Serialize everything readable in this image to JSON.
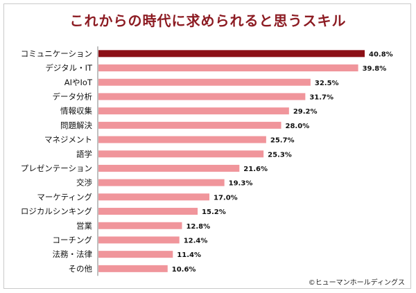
{
  "colors": {
    "title": "#8c1b22",
    "highlight": "#8b0f16",
    "bar": "#f0959b",
    "axis": "#7f7f7f"
  },
  "credit": "©ヒューマンホールディングス",
  "chart_data": {
    "type": "bar",
    "orientation": "horizontal",
    "title": "これからの時代に求められると思うスキル",
    "value_format": "percent",
    "categories": [
      "コミュニケーション",
      "デジタル・IT",
      "AIやIoT",
      "データ分析",
      "情報収集",
      "問題解決",
      "マネジメント",
      "語学",
      "プレゼンテーション",
      "交渉",
      "マーケティング",
      "ロジカルシンキング",
      "営業",
      "コーチング",
      "法務・法律",
      "その他"
    ],
    "values": [
      40.8,
      39.8,
      32.5,
      31.7,
      29.2,
      28.0,
      25.7,
      25.3,
      21.6,
      19.3,
      17.0,
      15.2,
      12.8,
      12.4,
      11.4,
      10.6
    ],
    "value_labels": [
      "40.8%",
      "39.8%",
      "32.5%",
      "31.7%",
      "29.2%",
      "28.0%",
      "25.7%",
      "25.3%",
      "21.6%",
      "19.3%",
      "17.0%",
      "15.2%",
      "12.8%",
      "12.4%",
      "11.4%",
      "10.6%"
    ],
    "highlight_index": 0,
    "xlim": [
      0,
      42.5
    ],
    "grid": false,
    "legend": "none"
  }
}
